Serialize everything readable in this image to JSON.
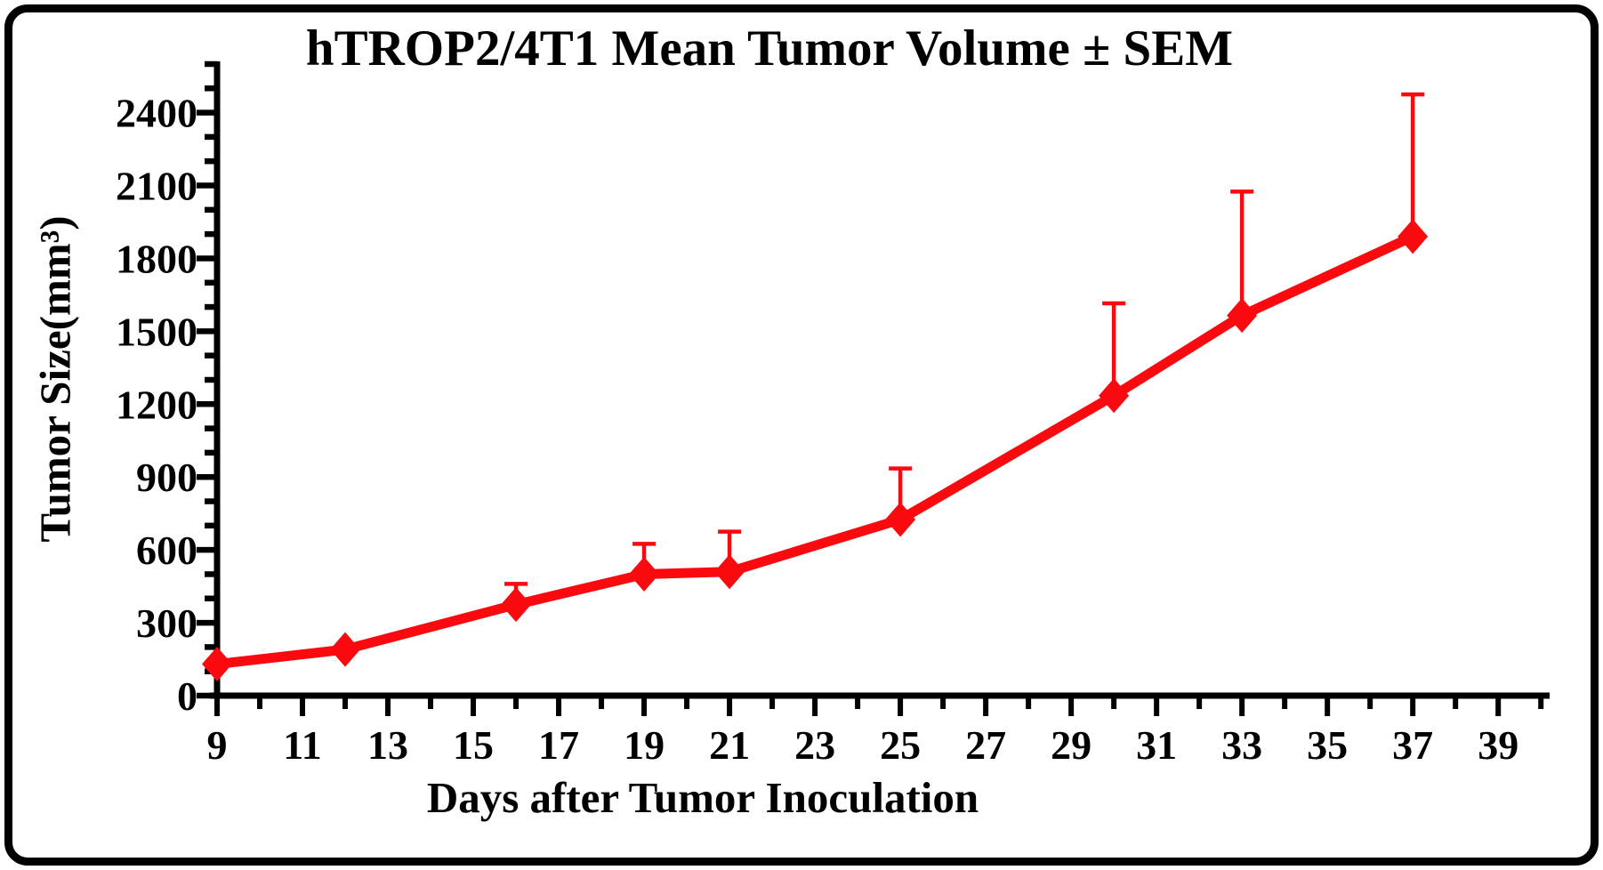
{
  "chart_data": {
    "type": "line",
    "title": "hTROP2/4T1 Mean Tumor Volume ± SEM",
    "xlabel": "Days after Tumor Inoculation",
    "ylabel": "Tumor Size(mm³)",
    "grid": false,
    "legend": false,
    "error_bars": "upper SEM only, with caps",
    "x_axis": {
      "range": [
        9,
        40.1
      ],
      "tick_start": 9,
      "tick_end": 40,
      "minor_step": 1,
      "major_every_odd_days": true,
      "labels": [
        9,
        11,
        13,
        15,
        17,
        19,
        21,
        23,
        25,
        27,
        29,
        31,
        33,
        35,
        37,
        39
      ]
    },
    "y_axis": {
      "range": [
        0,
        2600
      ],
      "minor_step": 100,
      "major_step": 300,
      "labels": [
        0,
        300,
        600,
        900,
        1200,
        1500,
        1800,
        2100,
        2400
      ]
    },
    "series": [
      {
        "name": "hTROP2/4T1 mean tumor volume",
        "color": "#FA0A0F",
        "marker": "diamond",
        "x": [
          9,
          12,
          16,
          19,
          21,
          25,
          30,
          33,
          37
        ],
        "y": [
          130,
          190,
          375,
          500,
          510,
          725,
          1235,
          1565,
          1890
        ],
        "sem_upper": [
          null,
          null,
          85,
          125,
          165,
          210,
          380,
          510,
          585
        ]
      }
    ],
    "axis_color": "#000000",
    "background_color": "#FFFFFF"
  }
}
